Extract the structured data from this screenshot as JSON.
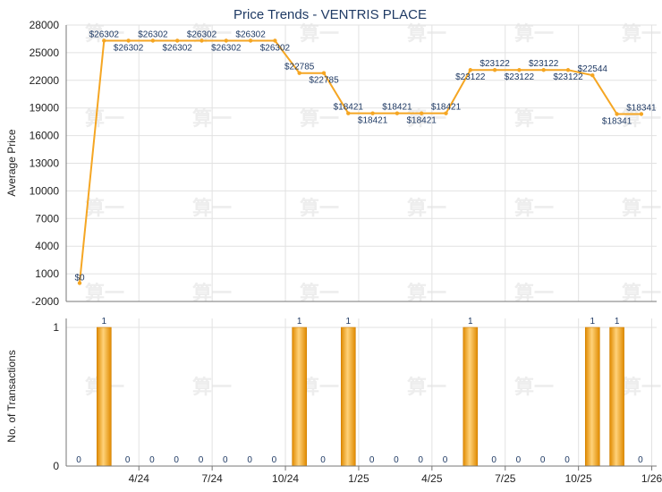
{
  "chart_data": [
    {
      "type": "line",
      "title": "Price Trends - VENTRIS PLACE",
      "ylabel": "Average Price",
      "ylim": [
        -2000,
        28000
      ],
      "yticks": [
        "28000",
        "25000",
        "22000",
        "19000",
        "16000",
        "13000",
        "10000",
        "7000",
        "4000",
        "1000",
        "-2000"
      ],
      "color": "#f5a623",
      "points": [
        {
          "x": "2024-02",
          "y": 0,
          "label": "$0"
        },
        {
          "x": "2024-03",
          "y": 26302,
          "label": "$26302"
        },
        {
          "x": "2024-04",
          "y": 26302,
          "label": "$26302"
        },
        {
          "x": "2024-05",
          "y": 26302,
          "label": "$26302"
        },
        {
          "x": "2024-06",
          "y": 26302,
          "label": "$26302"
        },
        {
          "x": "2024-07",
          "y": 26302,
          "label": "$26302"
        },
        {
          "x": "2024-08",
          "y": 26302,
          "label": "$26302"
        },
        {
          "x": "2024-09",
          "y": 26302,
          "label": "$26302"
        },
        {
          "x": "2024-10",
          "y": 26302,
          "label": "$26302"
        },
        {
          "x": "2024-11",
          "y": 22785,
          "label": "$22785"
        },
        {
          "x": "2024-12",
          "y": 22785,
          "label": "$22785"
        },
        {
          "x": "2025-01",
          "y": 18421,
          "label": "$18421"
        },
        {
          "x": "2025-02",
          "y": 18421,
          "label": "$18421"
        },
        {
          "x": "2025-03",
          "y": 18421,
          "label": "$18421"
        },
        {
          "x": "2025-04",
          "y": 18421,
          "label": "$18421"
        },
        {
          "x": "2025-05",
          "y": 18421,
          "label": "$18421"
        },
        {
          "x": "2025-06",
          "y": 23122,
          "label": "$23122"
        },
        {
          "x": "2025-07",
          "y": 23122,
          "label": "$23122"
        },
        {
          "x": "2025-08",
          "y": 23122,
          "label": "$23122"
        },
        {
          "x": "2025-09",
          "y": 23122,
          "label": "$23122"
        },
        {
          "x": "2025-10",
          "y": 23122,
          "label": "$23122"
        },
        {
          "x": "2025-11",
          "y": 22544,
          "label": "$22544"
        },
        {
          "x": "2025-12",
          "y": 18341,
          "label": "$18341"
        },
        {
          "x": "2026-01",
          "y": 18341,
          "label": "$18341"
        }
      ]
    },
    {
      "type": "bar",
      "ylabel": "No. of Transactions",
      "ylim": [
        0,
        1
      ],
      "yticks": [
        "1",
        "0"
      ],
      "xticks": [
        {
          "x": "2024-04",
          "label": "4/24"
        },
        {
          "x": "2024-07",
          "label": "7/24"
        },
        {
          "x": "2024-10",
          "label": "10/24"
        },
        {
          "x": "2025-01",
          "label": "1/25"
        },
        {
          "x": "2025-04",
          "label": "4/25"
        },
        {
          "x": "2025-07",
          "label": "7/25"
        },
        {
          "x": "2025-10",
          "label": "10/25"
        },
        {
          "x": "2026-01",
          "label": "1/26"
        }
      ],
      "color": "#f5a623",
      "bars": [
        {
          "x": "2024-02",
          "value": 0
        },
        {
          "x": "2024-03",
          "value": 1
        },
        {
          "x": "2024-04",
          "value": 0
        },
        {
          "x": "2024-05",
          "value": 0
        },
        {
          "x": "2024-06",
          "value": 0
        },
        {
          "x": "2024-07",
          "value": 0
        },
        {
          "x": "2024-08",
          "value": 0
        },
        {
          "x": "2024-09",
          "value": 0
        },
        {
          "x": "2024-10",
          "value": 0
        },
        {
          "x": "2024-11",
          "value": 1
        },
        {
          "x": "2024-12",
          "value": 0
        },
        {
          "x": "2025-01",
          "value": 1
        },
        {
          "x": "2025-02",
          "value": 0
        },
        {
          "x": "2025-03",
          "value": 0
        },
        {
          "x": "2025-04",
          "value": 0
        },
        {
          "x": "2025-05",
          "value": 0
        },
        {
          "x": "2025-06",
          "value": 1
        },
        {
          "x": "2025-07",
          "value": 0
        },
        {
          "x": "2025-08",
          "value": 0
        },
        {
          "x": "2025-09",
          "value": 0
        },
        {
          "x": "2025-10",
          "value": 0
        },
        {
          "x": "2025-11",
          "value": 1
        },
        {
          "x": "2025-12",
          "value": 1
        },
        {
          "x": "2026-01",
          "value": 0
        }
      ]
    }
  ]
}
